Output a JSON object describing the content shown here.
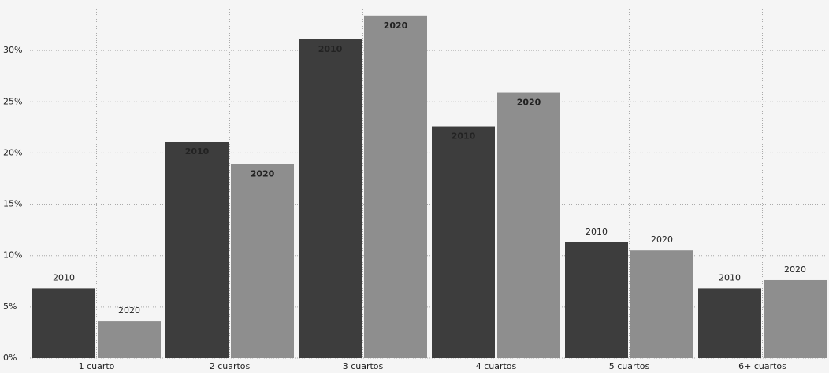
{
  "chart_data": {
    "type": "bar",
    "categories": [
      "1 cuarto",
      "2 cuartos",
      "3 cuartos",
      "4 cuartos",
      "5 cuartos",
      "6+ cuartos"
    ],
    "series": [
      {
        "name": "2010",
        "color": "#3d3d3d",
        "values": [
          6.8,
          21.1,
          31.1,
          22.6,
          11.3,
          6.8
        ]
      },
      {
        "name": "2020",
        "color": "#8e8e8e",
        "values": [
          3.6,
          18.9,
          33.4,
          25.9,
          10.5,
          7.6
        ]
      }
    ],
    "ylim": [
      0,
      34
    ],
    "yticks": [
      {
        "value": 0,
        "label": "0%"
      },
      {
        "value": 5,
        "label": "5%"
      },
      {
        "value": 10,
        "label": "10%"
      },
      {
        "value": 15,
        "label": "15%"
      },
      {
        "value": 20,
        "label": "20%"
      },
      {
        "value": 25,
        "label": "25%"
      },
      {
        "value": 30,
        "label": "30%"
      }
    ],
    "grid": true
  }
}
